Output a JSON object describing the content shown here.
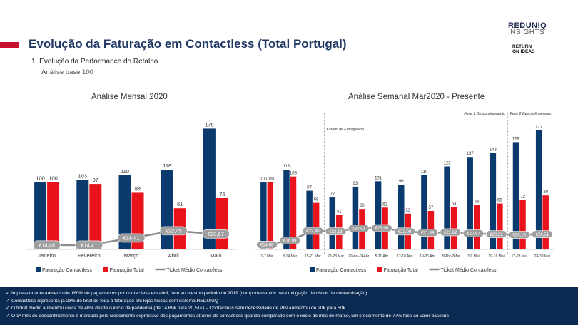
{
  "header": {
    "title": "Evolução da Faturação em Contactless (Total Portugal)",
    "subtitle": "1.  Evolução da Performance do Retalho",
    "sub_subtitle": "Análise base 100",
    "logo_main": "REDUNIQ",
    "logo_sub": "INSIGHTS",
    "logo2_line1": "RETURN",
    "logo2_line2": "ON IDEAS",
    "accent_color": "#c8102e"
  },
  "footer": {
    "bullets": [
      "Impressionante aumento de 160% de pagamentos por contactless em abril, face ao mesmo período de 2019 (comportamentos para mitigação de riscos de contaminação)",
      "Contactless representa já 23% do total de toda a faturação em lojas físicas com sistema REDUNIQ",
      "O ticket médio aumentou cerca de 40% desde o inicio da pandemia (de 14,69€ para 20,51€) – Contactless sem necessidade de PIN aumentou de 20€ para 50€",
      "O 1º mês de desconfinamento é marcado pelo crescimento expressivo dos pagamentos através de contactless quando comparado com o inicio do mês de março, um crescimento de 77% face ao valor baseline"
    ]
  },
  "chart_data": [
    {
      "type": "bar",
      "title": "Análise Mensal 2020",
      "categories": [
        "Janeiro",
        "Fevereiro",
        "Março",
        "Abril",
        "Maio"
      ],
      "series": [
        {
          "name": "Faturação Contactless",
          "color": "#0b3a6e",
          "values": [
            100,
            103,
            110,
            118,
            179
          ]
        },
        {
          "name": "Faturação Total",
          "color": "#e8131b",
          "values": [
            100,
            97,
            84,
            61,
            76
          ]
        }
      ],
      "line_series": {
        "name": "Ticket Médio Contactless",
        "color": "#8c8c8c",
        "values": [
          14.46,
          14.41,
          18.41,
          22.45,
          20.67
        ],
        "labels": [
          "€14,46",
          "€14,41",
          "€18,41",
          "€22,45",
          "€20,67"
        ]
      },
      "ylim": [
        0,
        190
      ],
      "legend_position": "bottom"
    },
    {
      "type": "bar",
      "title": "Análise Semanal Mar2020 - Presente",
      "categories": [
        "1-7 Mar",
        "8-14 Mar",
        "15-21 Mar",
        "22-28 Mar",
        "29Mar-04Abr",
        "5-11 Abr",
        "12-18 Abr",
        "19-25 Abr",
        "26Abr-2Mai",
        "3-9 Mai",
        "10-16 Mai",
        "17-23 Mai",
        "24-30 Mai"
      ],
      "series": [
        {
          "name": "Faturação Contactless",
          "color": "#0b3a6e",
          "values": [
            100,
            118,
            87,
            77,
            93,
            101,
            96,
            110,
            123,
            137,
            143,
            159,
            177
          ]
        },
        {
          "name": "Faturação Total",
          "color": "#e8131b",
          "values": [
            100,
            108,
            69,
            51,
            60,
            62,
            53,
            57,
            63,
            66,
            68,
            73,
            80
          ]
        }
      ],
      "line_series": {
        "name": "Ticket Médio Contactless",
        "color": "#8c8c8c",
        "values": [
          14.69,
          16.99,
          22.4,
          22.13,
          23.81,
          23.96,
          22.09,
          21.38,
          21.62,
          20.97,
          20.53,
          20.18,
          20.51
        ],
        "labels": [
          "€14,69",
          "€16,99",
          "€22,40",
          "€22,13",
          "€23,81",
          "€23,96",
          "€22,09",
          "€21,38",
          "€21,62",
          "€20,97",
          "€20,53",
          "€20,18",
          "€20,51"
        ]
      },
      "annotations": [
        {
          "text": "Estado de Emergência",
          "after_category_index": 2
        },
        {
          "text": "Fase 1 Desconfinamento",
          "after_category_index": 8
        },
        {
          "text": "Fase 2 Desconfinamento",
          "after_category_index": 10
        }
      ],
      "ylim": [
        0,
        190
      ],
      "legend_position": "bottom"
    }
  ]
}
